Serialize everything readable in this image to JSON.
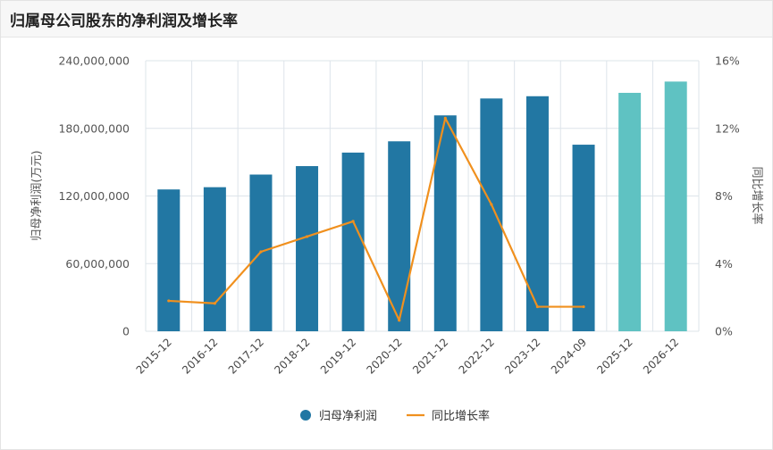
{
  "title": "归属母公司股东的净利润及增长率",
  "colors": {
    "bar_actual": "#2277a3",
    "bar_forecast": "#5fc2c2",
    "line": "#f0901e",
    "grid": "#dde4ea"
  },
  "chart_data": {
    "type": "bar",
    "title": "归属母公司股东的净利润及增长率",
    "categories": [
      "2015-12",
      "2016-12",
      "2017-12",
      "2018-12",
      "2019-12",
      "2020-12",
      "2021-12",
      "2022-12",
      "2023-12",
      "2024-09",
      "2025-12",
      "2026-12"
    ],
    "series": [
      {
        "name": "归母净利润",
        "axis": "left",
        "type": "bar",
        "values": [
          125800000,
          127800000,
          139000000,
          146500000,
          158500000,
          168500000,
          191500000,
          206500000,
          208500000,
          165500000,
          211500000,
          221500000
        ],
        "forecast_from_index": 10
      },
      {
        "name": "同比增长率",
        "axis": "right",
        "type": "line",
        "values": [
          1.8,
          1.65,
          4.7,
          5.6,
          6.5,
          0.65,
          12.6,
          7.5,
          1.45,
          1.45,
          null,
          null
        ]
      }
    ],
    "ylabel_left": "归母净利润(万元)",
    "ylabel_right": "同比增长率",
    "ylim_left": [
      0,
      240000000
    ],
    "ylim_right": [
      0,
      16
    ],
    "left_ticks": [
      "0",
      "60,000,000",
      "120,000,000",
      "180,000,000",
      "240,000,000"
    ],
    "right_ticks": [
      "0%",
      "4%",
      "8%",
      "12%",
      "16%"
    ],
    "legend": [
      {
        "label": "归母净利润",
        "kind": "bar"
      },
      {
        "label": "同比增长率",
        "kind": "line"
      }
    ],
    "legend_position": "bottom-center",
    "grid": true
  }
}
